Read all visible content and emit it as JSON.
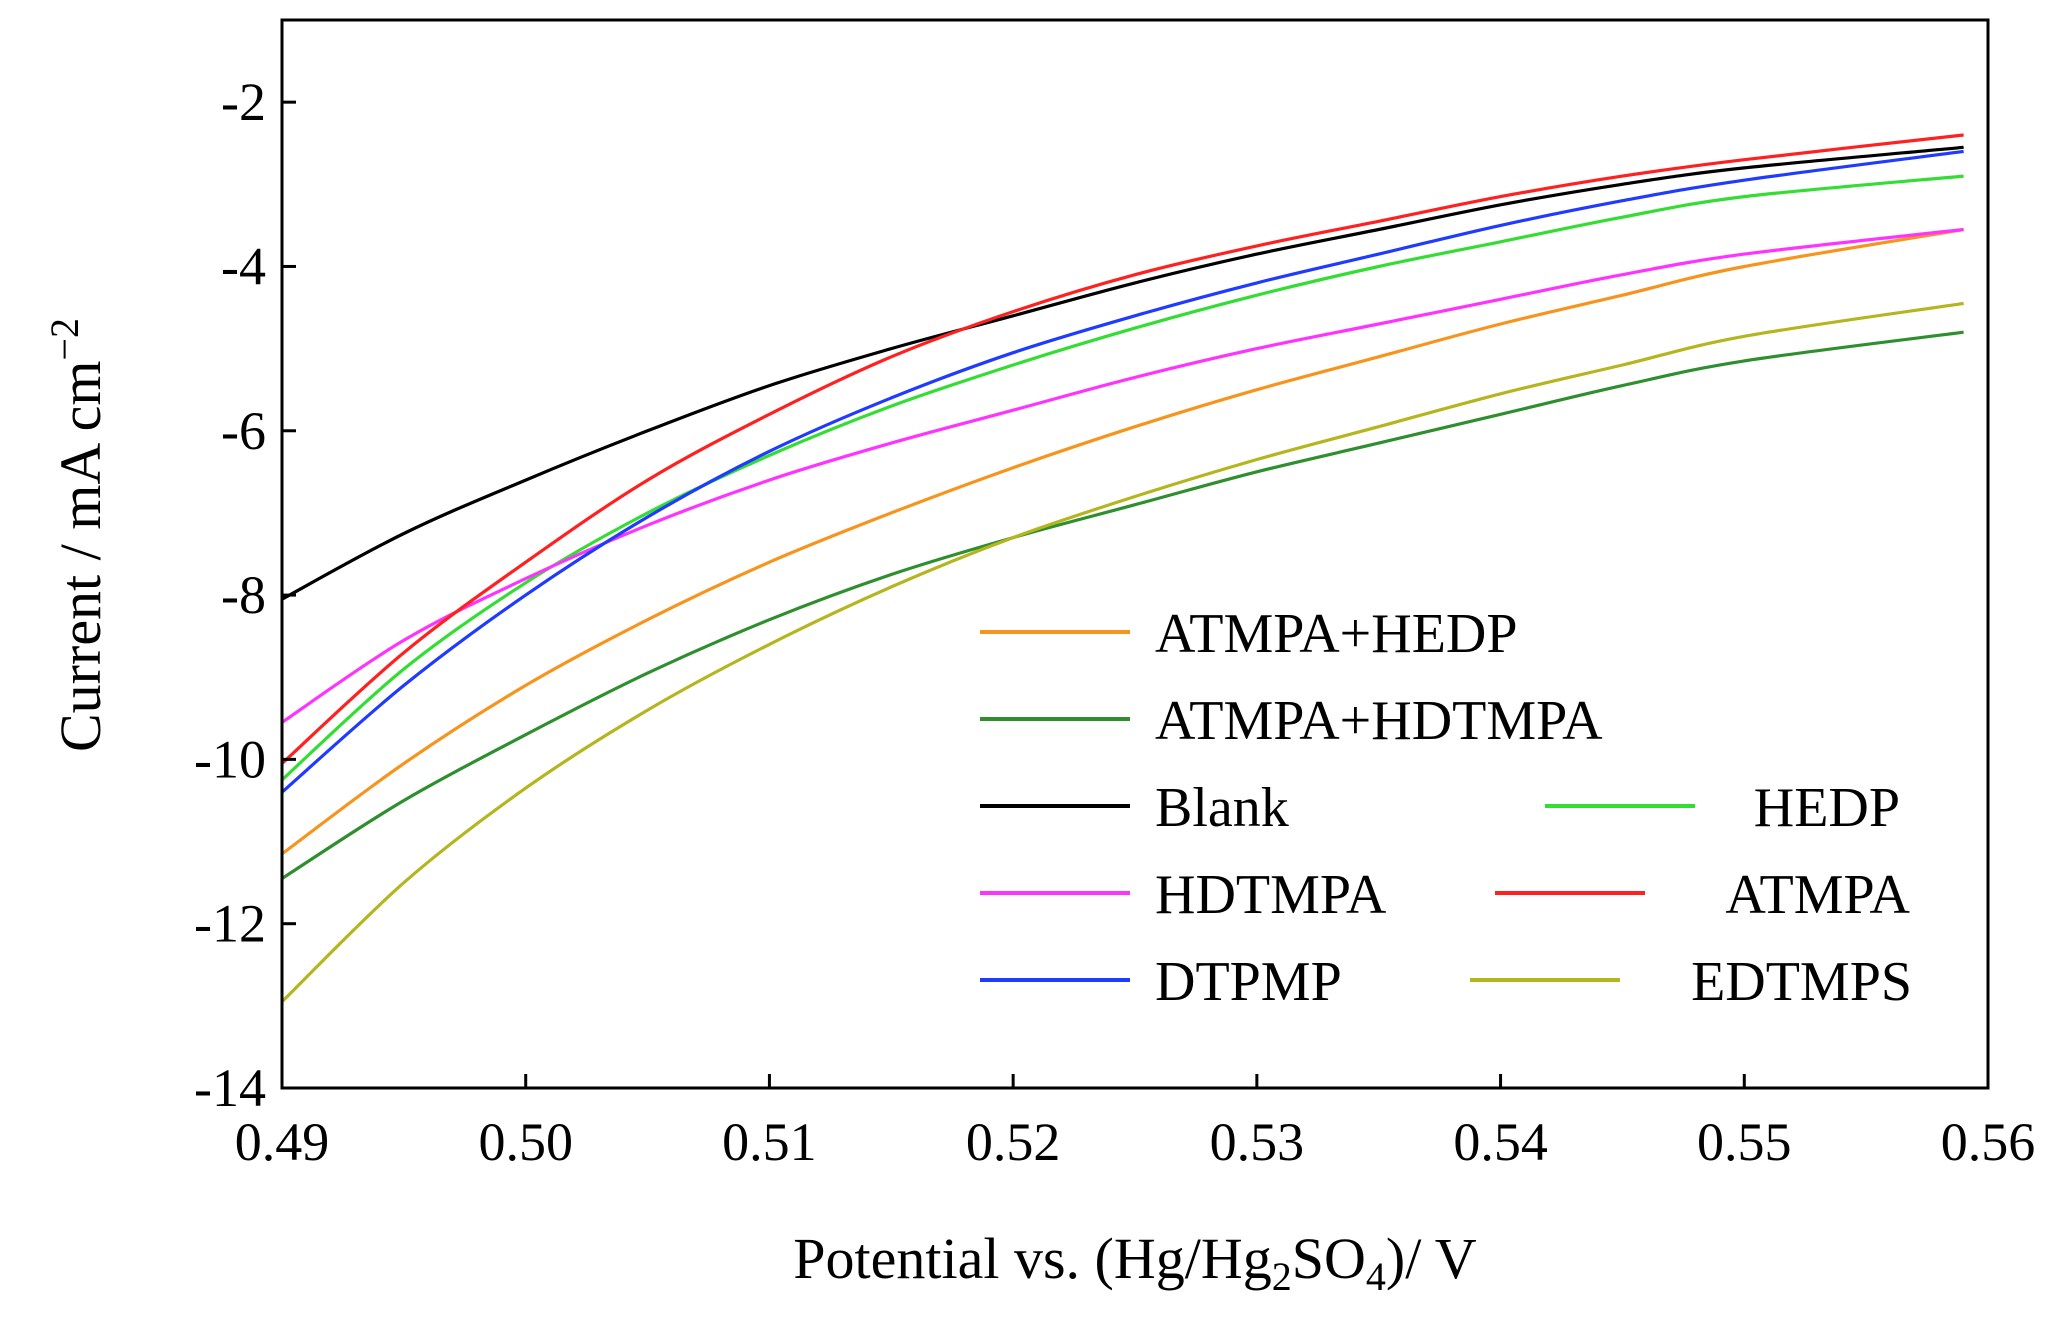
{
  "chart_data": {
    "type": "line",
    "title": "",
    "xlabel": "Potential vs. (Hg/Hg2SO4)/ V",
    "xlabel_parts": {
      "pre": "Potential vs. (Hg/Hg",
      "sub1": "2",
      "mid": "SO",
      "sub2": "4",
      "post": ")/ V"
    },
    "ylabel": "Current / mA cm-2",
    "ylabel_parts": {
      "base": "Current / mA cm",
      "sup": "−2"
    },
    "xlim": [
      0.49,
      0.56
    ],
    "ylim": [
      -14,
      -1
    ],
    "x_ticks": [
      0.49,
      0.5,
      0.51,
      0.52,
      0.53,
      0.54,
      0.55,
      0.56
    ],
    "x_tick_labels": [
      "0.49",
      "0.50",
      "0.51",
      "0.52",
      "0.53",
      "0.54",
      "0.55",
      "0.56"
    ],
    "y_ticks": [
      -14,
      -12,
      -10,
      -8,
      -6,
      -4,
      -2
    ],
    "y_tick_labels": [
      "-14",
      "-12",
      "-10",
      "-8",
      "-6",
      "-4",
      "-2"
    ],
    "grid": false,
    "legend_position": "lower-right",
    "x": [
      0.49,
      0.495,
      0.5,
      0.505,
      0.51,
      0.515,
      0.52,
      0.525,
      0.53,
      0.535,
      0.54,
      0.545,
      0.55,
      0.559
    ],
    "series": [
      {
        "name": "ATMPA+HEDP",
        "color": "#f7941d",
        "values": [
          -11.15,
          -10.05,
          -9.1,
          -8.3,
          -7.6,
          -7.0,
          -6.45,
          -5.95,
          -5.5,
          -5.1,
          -4.7,
          -4.35,
          -4.0,
          -3.55
        ]
      },
      {
        "name": "ATMPA+HDTMPA",
        "color": "#2f8f2f",
        "values": [
          -11.45,
          -10.5,
          -9.7,
          -8.95,
          -8.3,
          -7.75,
          -7.3,
          -6.9,
          -6.5,
          -6.15,
          -5.8,
          -5.45,
          -5.15,
          -4.8
        ]
      },
      {
        "name": "Blank",
        "color": "#000000",
        "values": [
          -8.05,
          -7.25,
          -6.6,
          -6.0,
          -5.45,
          -5.0,
          -4.6,
          -4.2,
          -3.85,
          -3.55,
          -3.25,
          -3.0,
          -2.8,
          -2.55
        ]
      },
      {
        "name": "HEDP",
        "color": "#33dd33",
        "values": [
          -10.25,
          -8.9,
          -7.85,
          -7.0,
          -6.3,
          -5.7,
          -5.2,
          -4.75,
          -4.35,
          -4.0,
          -3.7,
          -3.4,
          -3.15,
          -2.9
        ]
      },
      {
        "name": "HDTMPA",
        "color": "#ff33ff",
        "values": [
          -9.55,
          -8.55,
          -7.8,
          -7.15,
          -6.6,
          -6.15,
          -5.75,
          -5.35,
          -5.0,
          -4.7,
          -4.4,
          -4.1,
          -3.85,
          -3.55
        ]
      },
      {
        "name": "ATMPA",
        "color": "#ff2020",
        "values": [
          -10.05,
          -8.7,
          -7.6,
          -6.6,
          -5.8,
          -5.1,
          -4.55,
          -4.1,
          -3.75,
          -3.45,
          -3.15,
          -2.9,
          -2.7,
          -2.4
        ]
      },
      {
        "name": "DTPMP",
        "color": "#1f3bff",
        "values": [
          -10.4,
          -9.1,
          -8.0,
          -7.05,
          -6.25,
          -5.6,
          -5.05,
          -4.6,
          -4.2,
          -3.85,
          -3.5,
          -3.2,
          -2.95,
          -2.6
        ]
      },
      {
        "name": "EDTMPS",
        "color": "#b5b520",
        "values": [
          -12.95,
          -11.5,
          -10.35,
          -9.4,
          -8.6,
          -7.9,
          -7.3,
          -6.8,
          -6.35,
          -5.95,
          -5.55,
          -5.2,
          -4.85,
          -4.45
        ]
      }
    ]
  }
}
